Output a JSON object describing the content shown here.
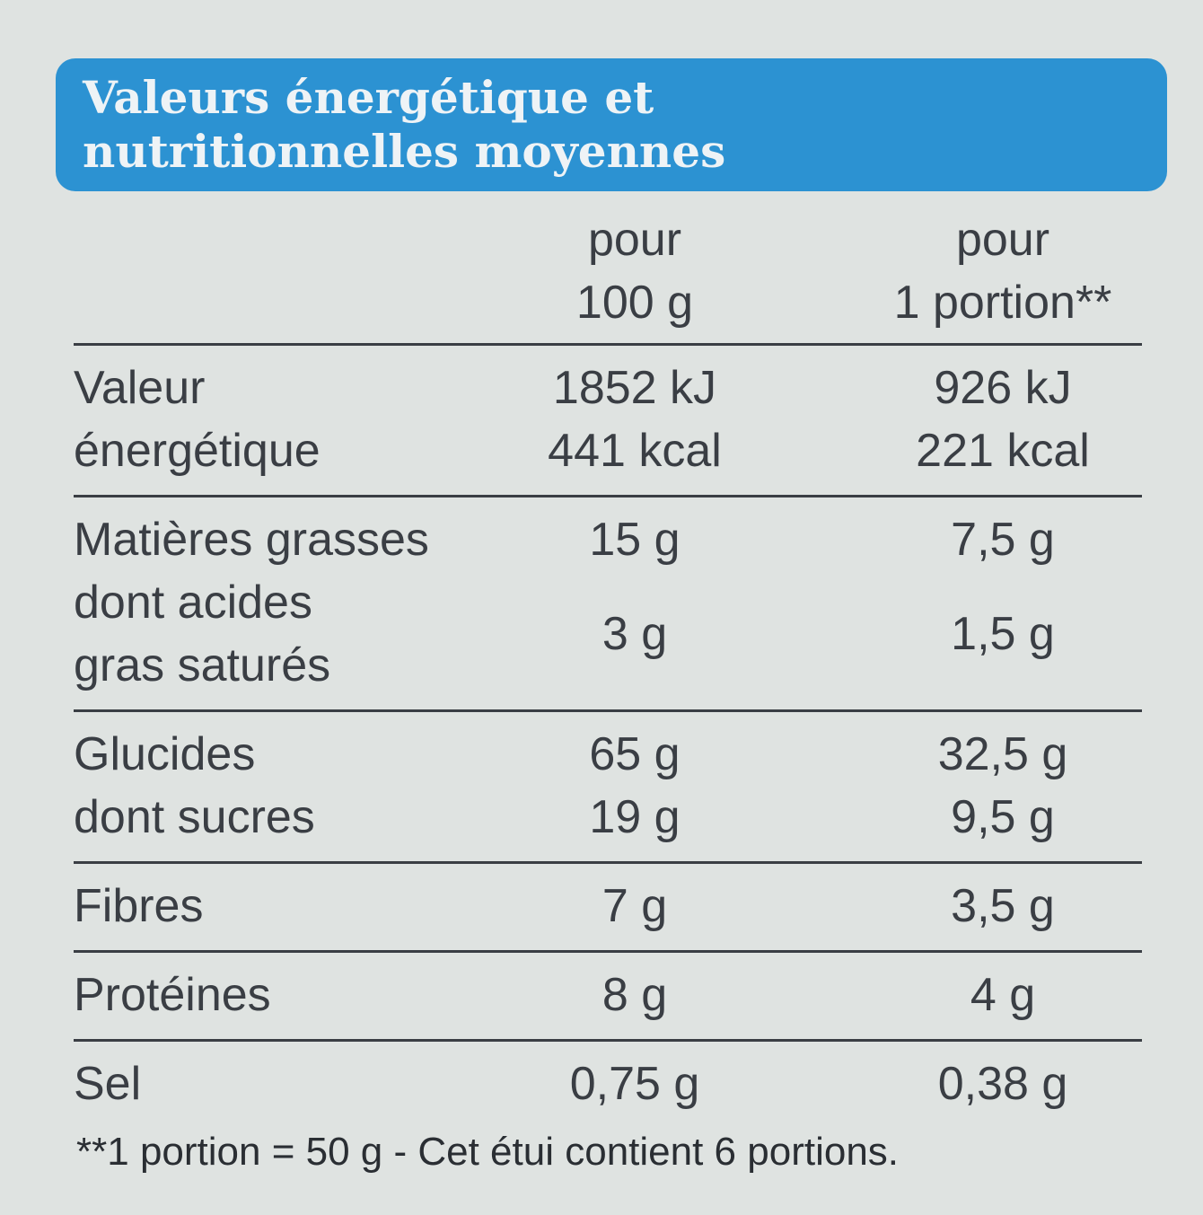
{
  "header": {
    "title": [
      "Valeurs énergétique et",
      "nutritionnelles moyennes"
    ]
  },
  "table": {
    "columns": [
      [
        "pour",
        "100 g"
      ],
      [
        "pour",
        "1 portion**"
      ]
    ],
    "groups": [
      {
        "rows": [
          {
            "label": [
              "Valeur",
              "énergétique"
            ],
            "per_100g": [
              "1852 kJ",
              "441 kcal"
            ],
            "per_portion": [
              "926 kJ",
              "221 kcal"
            ]
          }
        ]
      },
      {
        "rows": [
          {
            "label": [
              "Matières grasses"
            ],
            "per_100g": [
              "15 g"
            ],
            "per_portion": [
              "7,5 g"
            ]
          },
          {
            "label": [
              "dont acides",
              "gras saturés"
            ],
            "per_100g": [
              "3 g"
            ],
            "per_portion": [
              "1,5 g"
            ]
          }
        ]
      },
      {
        "rows": [
          {
            "label": [
              "Glucides"
            ],
            "per_100g": [
              "65 g"
            ],
            "per_portion": [
              "32,5 g"
            ]
          },
          {
            "label": [
              "dont sucres"
            ],
            "per_100g": [
              "19 g"
            ],
            "per_portion": [
              "9,5 g"
            ]
          }
        ]
      },
      {
        "rows": [
          {
            "label": [
              "Fibres"
            ],
            "per_100g": [
              "7 g"
            ],
            "per_portion": [
              "3,5 g"
            ]
          }
        ]
      },
      {
        "rows": [
          {
            "label": [
              "Protéines"
            ],
            "per_100g": [
              "8 g"
            ],
            "per_portion": [
              "4 g"
            ]
          }
        ]
      },
      {
        "rows": [
          {
            "label": [
              "Sel"
            ],
            "per_100g": [
              "0,75 g"
            ],
            "per_portion": [
              "0,38 g"
            ]
          }
        ]
      }
    ]
  },
  "footnote": "**1 portion = 50 g - Cet étui contient 6 portions."
}
